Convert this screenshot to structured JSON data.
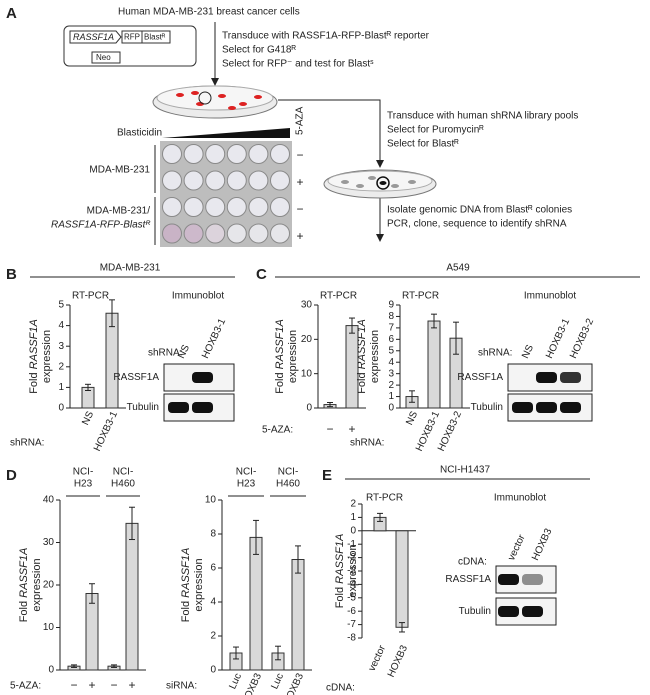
{
  "panels": {
    "a": "A",
    "b": "B",
    "c": "C",
    "d": "D",
    "e": "E"
  },
  "panel_a": {
    "cells": "Human MDA-MB-231 breast cancer cells",
    "plasmid": {
      "promoter": "RASSF1A",
      "rfp": "RFP",
      "blast": "Blastᴿ",
      "neo": "Neo"
    },
    "step1": [
      "Transduce with RASSF1A-RFP-Blastᴿ reporter",
      "Select for G418ᴿ",
      "Select for RFP⁻ and test for Blastˢ"
    ],
    "step2": [
      "Transduce with human shRNA library pools",
      "Select for Puromycinᴿ",
      "Select for Blastᴿ"
    ],
    "step3": [
      "Isolate genomic DNA from Blastᴿ colonies",
      "PCR, clone, sequence to identify shRNA"
    ],
    "plate": {
      "drug": "Blasticidin",
      "aza": "5-AZA",
      "row1": "MDA-MB-231",
      "row2": [
        "MDA-MB-231/",
        "RASSF1A-RFP-Blastᴿ"
      ],
      "signs": [
        "−",
        "+",
        "−",
        "+"
      ]
    }
  },
  "headers": {
    "b": "MDA-MB-231",
    "c": "A549",
    "e": "NCI-H1437"
  },
  "chart_data": [
    {
      "type": "bar",
      "title": "RT-PCR",
      "ylabel": {
        "fold": "Fold ",
        "gene": "RASSF1A",
        "rest": "expression"
      },
      "x_prefix": "shRNA:",
      "categories": [
        "NS",
        "HOXB3-1"
      ],
      "values": [
        1.0,
        4.6
      ],
      "errors": [
        0.15,
        0.65
      ],
      "ylim": [
        0,
        5
      ],
      "yticks": [
        0,
        1,
        2,
        3,
        4,
        5
      ],
      "color": "#d9d9d9"
    },
    {
      "type": "bar",
      "title": "RT-PCR",
      "ylabel": {
        "fold": "Fold ",
        "gene": "RASSF1A",
        "rest": "expression"
      },
      "x_prefix": "5-AZA:",
      "categories": [
        "−",
        "+"
      ],
      "values": [
        1,
        24
      ],
      "errors": [
        0.6,
        2.2
      ],
      "ylim": [
        0,
        30
      ],
      "yticks": [
        0,
        10,
        20,
        30
      ],
      "color": "#d9d9d9"
    },
    {
      "type": "bar",
      "title": "RT-PCR",
      "ylabel": {
        "fold": "Fold ",
        "gene": "RASSF1A",
        "rest": "expression"
      },
      "x_prefix": "shRNA:",
      "categories": [
        "NS",
        "HOXB3-1",
        "HOXB3-2"
      ],
      "values": [
        1.0,
        7.6,
        6.1
      ],
      "errors": [
        0.5,
        0.6,
        1.4
      ],
      "ylim": [
        0,
        9
      ],
      "yticks": [
        0,
        1,
        2,
        3,
        4,
        5,
        6,
        7,
        8,
        9
      ],
      "color": "#d9d9d9"
    },
    {
      "type": "bar",
      "ylabel": {
        "fold": "Fold ",
        "gene": "RASSF1A",
        "rest": "expression"
      },
      "x_prefix": "5-AZA:",
      "groups": [
        [
          "NCI-",
          "H23"
        ],
        [
          "NCI-",
          "H460"
        ]
      ],
      "categories": [
        "−",
        "+",
        "−",
        "+"
      ],
      "values": [
        0.9,
        18,
        0.9,
        34.5
      ],
      "errors": [
        0.3,
        2.3,
        0.3,
        3.8
      ],
      "ylim": [
        0,
        40
      ],
      "yticks": [
        0,
        10,
        20,
        30,
        40
      ],
      "color": "#d9d9d9"
    },
    {
      "type": "bar",
      "ylabel": {
        "fold": "Fold ",
        "gene": "RASSF1A",
        "rest": "expression"
      },
      "x_prefix": "siRNA:",
      "groups": [
        [
          "NCI-",
          "H23"
        ],
        [
          "NCI-",
          "H460"
        ]
      ],
      "categories": [
        "Luc",
        "HOXB3",
        "Luc",
        "HOXB3"
      ],
      "values": [
        1.0,
        7.8,
        1.0,
        6.5
      ],
      "errors": [
        0.35,
        1.0,
        0.4,
        0.8
      ],
      "ylim": [
        0,
        10
      ],
      "yticks": [
        0,
        2,
        4,
        6,
        8,
        10
      ],
      "color": "#d9d9d9"
    },
    {
      "type": "bar",
      "title": "RT-PCR",
      "ylabel": {
        "fold": "Fold ",
        "gene": "RASSF1A",
        "rest": "expression"
      },
      "x_prefix": "cDNA:",
      "categories": [
        "vector",
        "HOXB3"
      ],
      "values": [
        1.0,
        -7.2
      ],
      "errors": [
        0.3,
        0.35
      ],
      "ylim": [
        -8,
        2
      ],
      "yticks": [
        -8,
        -7,
        -6,
        -5,
        -4,
        -3,
        -2,
        -1,
        0,
        1,
        2
      ],
      "color": "#d9d9d9"
    }
  ],
  "immunoblots": [
    {
      "title": "Immunoblot",
      "prefix": "shRNA:",
      "lanes": [
        "NS",
        "HOXB3-1"
      ],
      "rows": [
        "RASSF1A",
        "Tubulin"
      ]
    },
    {
      "title": "Immunoblot",
      "prefix": "shRNA:",
      "lanes": [
        "NS",
        "HOXB3-1",
        "HOXB3-2"
      ],
      "rows": [
        "RASSF1A",
        "Tubulin"
      ]
    },
    {
      "title": "Immunoblot",
      "prefix": "cDNA:",
      "lanes": [
        "vector",
        "HOXB3"
      ],
      "rows": [
        "RASSF1A",
        "Tubulin"
      ]
    }
  ]
}
